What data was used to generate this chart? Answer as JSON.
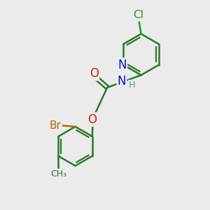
{
  "background_color": "#ebebeb",
  "bond_color": "#2a7a2a",
  "bond_width": 1.8,
  "atom_colors": {
    "C": "#2a7a2a",
    "N": "#1010cc",
    "O": "#cc2200",
    "Br": "#bb6600",
    "Cl": "#229922",
    "H": "#559999"
  },
  "font_size": 11,
  "fig_size": [
    3.0,
    3.0
  ],
  "dpi": 100
}
